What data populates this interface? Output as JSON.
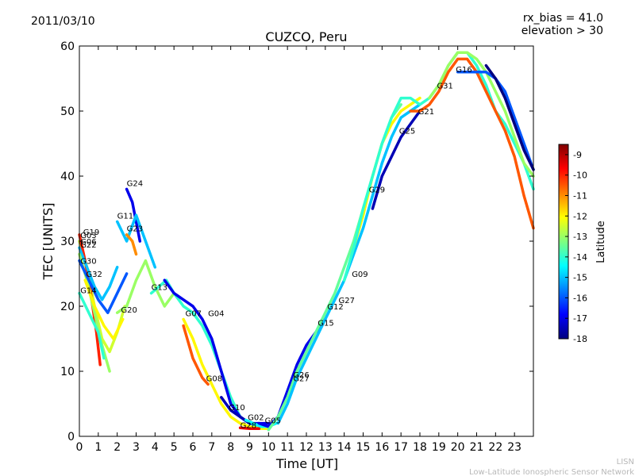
{
  "header": {
    "date": "2011/03/10",
    "rx_bias": "rx_bias = 41.0",
    "elevation": "elevation > 30"
  },
  "watermark": {
    "line1": "LISN",
    "line2": "Low-Latitude Ionospheric Sensor Network"
  },
  "chart_data": {
    "type": "scatter",
    "title": "CUZCO, Peru",
    "xlabel": "Time [UT]",
    "ylabel": "TEC [UNITS]",
    "xlim": [
      0,
      24
    ],
    "ylim": [
      0,
      60
    ],
    "xticks": [
      "0",
      "1",
      "2",
      "3",
      "4",
      "5",
      "6",
      "7",
      "8",
      "9",
      "10",
      "11",
      "12",
      "13",
      "14",
      "15",
      "16",
      "17",
      "18",
      "19",
      "20",
      "21",
      "22",
      "23"
    ],
    "yticks": [
      "0",
      "10",
      "20",
      "30",
      "40",
      "50",
      "60"
    ],
    "colorbar": {
      "label": "Latitude",
      "min": -18,
      "max": -8.5,
      "ticks": [
        "-9",
        "-10",
        "-11",
        "-12",
        "-13",
        "-14",
        "-15",
        "-16",
        "-17",
        "-18"
      ],
      "colors": [
        "#00007f",
        "#0000ff",
        "#007fff",
        "#00ffff",
        "#7fff7f",
        "#ffff00",
        "#ff7f00",
        "#ff0000",
        "#7f0000"
      ]
    },
    "satellite_labels": [
      {
        "name": "G19",
        "x": 0.2,
        "y": 31
      },
      {
        "name": "G03",
        "x": 0.05,
        "y": 30.5
      },
      {
        "name": "G06",
        "x": 0.05,
        "y": 29.5
      },
      {
        "name": "G22",
        "x": 0.05,
        "y": 29
      },
      {
        "name": "G30",
        "x": 0.05,
        "y": 26.5
      },
      {
        "name": "G32",
        "x": 0.35,
        "y": 24.5
      },
      {
        "name": "G14",
        "x": 0.05,
        "y": 22
      },
      {
        "name": "G20",
        "x": 2.2,
        "y": 19
      },
      {
        "name": "G24",
        "x": 2.5,
        "y": 38.5
      },
      {
        "name": "G11",
        "x": 2.0,
        "y": 33.5
      },
      {
        "name": "G23",
        "x": 2.5,
        "y": 31.5
      },
      {
        "name": "G13",
        "x": 3.8,
        "y": 22.5
      },
      {
        "name": "G07",
        "x": 5.6,
        "y": 18.5
      },
      {
        "name": "G04",
        "x": 6.8,
        "y": 18.5
      },
      {
        "name": "G08",
        "x": 6.7,
        "y": 8.5
      },
      {
        "name": "G10",
        "x": 7.9,
        "y": 4
      },
      {
        "name": "G02",
        "x": 8.9,
        "y": 2.5
      },
      {
        "name": "G05",
        "x": 9.8,
        "y": 2
      },
      {
        "name": "G28",
        "x": 8.5,
        "y": 1.3
      },
      {
        "name": "G26",
        "x": 11.3,
        "y": 9
      },
      {
        "name": "G27",
        "x": 11.3,
        "y": 8.5
      },
      {
        "name": "G15",
        "x": 12.6,
        "y": 17
      },
      {
        "name": "G12",
        "x": 13.1,
        "y": 19.5
      },
      {
        "name": "G27",
        "x": 13.7,
        "y": 20.5
      },
      {
        "name": "G09",
        "x": 14.4,
        "y": 24.5
      },
      {
        "name": "G29",
        "x": 15.3,
        "y": 37.5
      },
      {
        "name": "G25",
        "x": 16.9,
        "y": 46.5
      },
      {
        "name": "G21",
        "x": 17.9,
        "y": 49.5
      },
      {
        "name": "G31",
        "x": 18.9,
        "y": 53.5
      },
      {
        "name": "G16",
        "x": 19.9,
        "y": 56
      }
    ],
    "series": [
      {
        "name": "G19",
        "latitude": -12.5,
        "x": [
          0,
          0.4,
          0.8,
          1.2,
          1.6,
          2.0,
          2.4
        ],
        "y": [
          30,
          26,
          20,
          15,
          13,
          16,
          20
        ]
      },
      {
        "name": "G03",
        "latitude": -10,
        "x": [
          0,
          0.3,
          0.6,
          0.9,
          1.1
        ],
        "y": [
          31,
          27,
          22,
          16,
          11
        ]
      },
      {
        "name": "G06",
        "latitude": -15,
        "x": [
          0,
          0.4,
          0.8,
          1.2,
          1.6,
          2.0
        ],
        "y": [
          29,
          26,
          23,
          21,
          23,
          26
        ]
      },
      {
        "name": "G22",
        "latitude": -13,
        "x": [
          0,
          0.4,
          0.8,
          1.2,
          1.6
        ],
        "y": [
          28,
          24,
          19,
          14,
          10
        ]
      },
      {
        "name": "G30",
        "latitude": -16,
        "x": [
          0,
          0.5,
          1.0,
          1.5,
          2.0,
          2.5
        ],
        "y": [
          27,
          24,
          21,
          19,
          22,
          25
        ]
      },
      {
        "name": "G32",
        "latitude": -12,
        "x": [
          0.3,
          0.8,
          1.3,
          1.8,
          2.3
        ],
        "y": [
          24,
          20,
          17,
          15,
          18
        ]
      },
      {
        "name": "G14",
        "latitude": -14,
        "x": [
          0,
          0.5,
          1.0,
          1.3
        ],
        "y": [
          22,
          19,
          16,
          12
        ]
      },
      {
        "name": "G24",
        "latitude": -17,
        "x": [
          2.5,
          2.8,
          3.0,
          3.2
        ],
        "y": [
          38,
          36,
          33,
          30
        ]
      },
      {
        "name": "G11",
        "latitude": -15,
        "x": [
          2.0,
          2.5,
          3.0,
          3.5,
          4.0
        ],
        "y": [
          33,
          30,
          34,
          30,
          26
        ]
      },
      {
        "name": "G23",
        "latitude": -11,
        "x": [
          2.5,
          2.8,
          3.0
        ],
        "y": [
          31,
          30,
          28
        ]
      },
      {
        "name": "G20",
        "latitude": -13,
        "x": [
          2.0,
          2.5,
          3.0,
          3.5,
          4.0,
          4.5,
          5.0
        ],
        "y": [
          19,
          20,
          24,
          27,
          23,
          20,
          22
        ]
      },
      {
        "name": "G13",
        "latitude": -14,
        "x": [
          3.8,
          4.2,
          4.6,
          5.0,
          5.5,
          6.0,
          6.5,
          7.0,
          7.5,
          8.0,
          8.5,
          9.0,
          9.5,
          10.0
        ],
        "y": [
          22,
          23,
          24,
          22,
          20,
          19,
          17,
          14,
          10,
          6,
          3,
          2,
          1.5,
          1.5
        ]
      },
      {
        "name": "G07",
        "latitude": -12,
        "x": [
          5.5,
          6.0,
          6.5,
          7.0,
          7.5,
          8.0,
          8.5,
          9.0,
          9.5,
          10.0
        ],
        "y": [
          18,
          15,
          11,
          8,
          5,
          3,
          2,
          1.5,
          1.2,
          1.2
        ]
      },
      {
        "name": "G04",
        "latitude": -17,
        "x": [
          4.5,
          5.0,
          5.5,
          6.0,
          6.5,
          7.0,
          7.5,
          8.0,
          8.5,
          9.0,
          9.5,
          10.0
        ],
        "y": [
          24,
          22,
          21,
          20,
          18,
          15,
          10,
          5,
          3,
          2,
          2,
          2
        ]
      },
      {
        "name": "G08",
        "latitude": -10.5,
        "x": [
          5.5,
          6.0,
          6.5,
          6.8
        ],
        "y": [
          17,
          12,
          9,
          8
        ]
      },
      {
        "name": "G10",
        "latitude": -17.5,
        "x": [
          7.5,
          8.0,
          8.5,
          9.0
        ],
        "y": [
          6,
          4,
          3,
          2
        ]
      },
      {
        "name": "G28",
        "latitude": -9.5,
        "x": [
          8.5,
          9.0,
          9.5
        ],
        "y": [
          1.3,
          1.2,
          1.2
        ]
      },
      {
        "name": "G02",
        "latitude": -14.5,
        "x": [
          8.8,
          9.2,
          9.6,
          10.0,
          10.4
        ],
        "y": [
          2.5,
          2,
          1.5,
          1.5,
          2
        ]
      },
      {
        "name": "G05",
        "latitude": -17,
        "x": [
          9.5,
          10.0,
          10.5,
          11.0,
          11.5,
          12.0,
          12.5,
          13.0
        ],
        "y": [
          2,
          1.5,
          3,
          7,
          11,
          14,
          16,
          18
        ]
      },
      {
        "name": "G26",
        "latitude": -13.5,
        "x": [
          10.0,
          10.5,
          11.0,
          11.5,
          12.0,
          12.5,
          13.0,
          13.5,
          14.0,
          14.5,
          15.0,
          15.5,
          16.0,
          16.5,
          17.0
        ],
        "y": [
          1,
          3,
          6,
          10,
          13,
          16,
          19,
          22,
          26,
          30,
          35,
          40,
          45,
          49,
          51
        ]
      },
      {
        "name": "G27",
        "latitude": -15,
        "x": [
          10.5,
          11.0,
          11.5,
          12.0,
          12.5,
          13.0,
          13.5,
          14.0,
          14.5,
          15.0,
          15.5,
          16.0,
          16.5,
          17.0,
          17.5,
          18.0
        ],
        "y": [
          2,
          5,
          9,
          12,
          15,
          18,
          21,
          24,
          28,
          32,
          37,
          42,
          46,
          49,
          50,
          51
        ]
      },
      {
        "name": "G29",
        "latitude": -12,
        "x": [
          14.5,
          15.0,
          15.5,
          16.0,
          16.5,
          17.0,
          17.5,
          18.0
        ],
        "y": [
          29,
          34,
          40,
          45,
          48,
          50,
          51,
          52
        ]
      },
      {
        "name": "G25",
        "latitude": -17.5,
        "x": [
          15.5,
          16.0,
          16.5,
          17.0,
          17.5,
          18.0
        ],
        "y": [
          35,
          40,
          43,
          46,
          48,
          50
        ]
      },
      {
        "name": "G09",
        "latitude": -14,
        "x": [
          14.0,
          14.5,
          15.0,
          15.5,
          16.0,
          16.5,
          17.0,
          17.5,
          18.0,
          18.5,
          19.0,
          19.5,
          20.0,
          20.5,
          21.0,
          21.5,
          22.0,
          22.5,
          23.0,
          23.5,
          24.0
        ],
        "y": [
          24,
          29,
          35,
          40,
          45,
          49,
          52,
          52,
          51,
          52,
          54,
          57,
          59,
          59,
          57,
          54,
          50,
          48,
          45,
          42,
          38
        ]
      },
      {
        "name": "G21",
        "latitude": -10.5,
        "x": [
          17.5,
          18.0,
          18.5,
          19.0,
          19.5,
          20.0,
          20.5,
          21.0,
          21.5,
          22.0,
          22.5,
          23.0,
          23.5,
          24.0
        ],
        "y": [
          50,
          50,
          51,
          53,
          56,
          58,
          58,
          56,
          53,
          50,
          47,
          43,
          37,
          32
        ]
      },
      {
        "name": "G31",
        "latitude": -13,
        "x": [
          18.5,
          19.0,
          19.5,
          20.0,
          20.5,
          21.0,
          21.5,
          22.0,
          22.5,
          23.0,
          23.5,
          24.0
        ],
        "y": [
          52,
          54,
          57,
          59,
          59,
          58,
          56,
          53,
          50,
          46,
          42,
          40
        ]
      },
      {
        "name": "G16",
        "latitude": -16,
        "x": [
          20.0,
          20.5,
          21.0,
          21.5,
          22.0,
          22.5,
          23.0,
          23.5,
          24.0
        ],
        "y": [
          56,
          56,
          56,
          56,
          55,
          53,
          49,
          45,
          41
        ]
      },
      {
        "name": "G12",
        "latitude": -18,
        "x": [
          21.5,
          22.0,
          22.5,
          23.0,
          23.5,
          24.0
        ],
        "y": [
          57,
          55,
          52,
          48,
          44,
          41
        ]
      }
    ]
  }
}
